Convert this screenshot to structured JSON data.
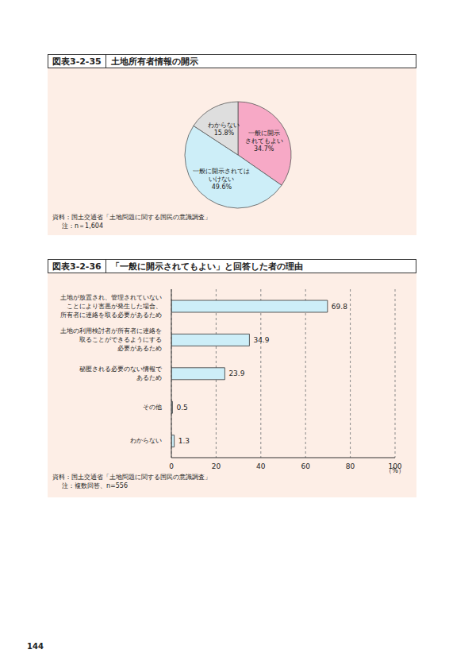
{
  "chart_data": [
    {
      "type": "pie",
      "figure_number": "図表3-2-35",
      "title": "土地所有者情報の開示",
      "categories": [
        "一般に開示\nされてもよい",
        "一般に開示されては\nいけない",
        "わからない"
      ],
      "values": [
        34.7,
        49.6,
        15.8
      ],
      "value_labels": [
        "34.7%",
        "49.6%",
        "15.8%"
      ],
      "colors": [
        "#f7a9c6",
        "#cdeef8",
        "#dedede"
      ],
      "data_labels": true,
      "source": "資料：国土交通省「土地問題に関する国民の意識調査」",
      "note": "注：n＝1,604"
    },
    {
      "type": "bar",
      "orientation": "horizontal",
      "figure_number": "図表3-2-36",
      "title": "「一般に開示されてもよい」と回答した者の理由",
      "categories": [
        "土地が放置され、管理されていない\nことにより害悪が発生した場合、\n所有者に連絡を取る必要があるため",
        "土地の利用検討者が所有者に連絡を\n取ることができるようにする\n必要があるため",
        "秘匿される必要のない情報で\nあるため",
        "その他",
        "わからない"
      ],
      "values": [
        69.8,
        34.9,
        23.9,
        0.5,
        1.3
      ],
      "color": "#cdeef8",
      "xlim": [
        0,
        100
      ],
      "xticks": [
        0,
        20,
        40,
        60,
        80,
        100
      ],
      "x_label": "（%）",
      "grid": true,
      "data_labels": true,
      "source": "資料：国土交通省「土地問題に関する国民の意識調査」",
      "note": "注：複数回答、n=556"
    }
  ],
  "page_number": "144"
}
